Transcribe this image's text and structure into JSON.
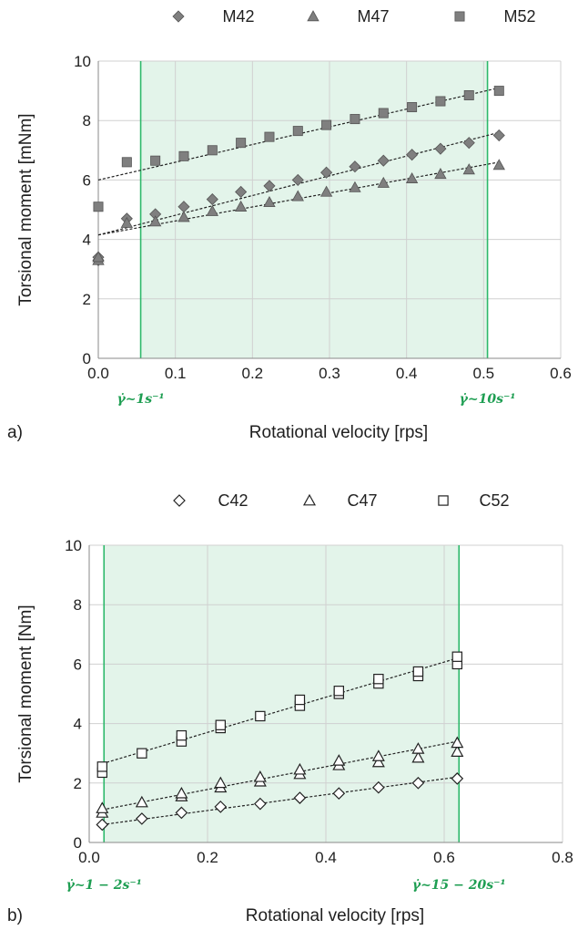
{
  "colors": {
    "region_fill": "#e3f4ea",
    "region_line": "#2db86a",
    "annotation": "#1e9e52",
    "grid": "#d0d0d0",
    "filled_marker": "#7f7f7f",
    "trend": "#222222"
  },
  "chart_data": [
    {
      "type": "scatter",
      "panel_label": "a)",
      "xlabel": "Rotational velocity [rps]",
      "ylabel": "Torsional moment [mNm]",
      "xlim": [
        0,
        0.6
      ],
      "ylim": [
        0,
        10
      ],
      "xticks": [
        "0.0",
        "0.1",
        "0.2",
        "0.3",
        "0.4",
        "0.5",
        "0.6"
      ],
      "yticks": [
        "0",
        "2",
        "4",
        "6",
        "8",
        "10"
      ],
      "grid": true,
      "legend_position": "top",
      "shaded_region": [
        0.055,
        0.505
      ],
      "annotations": [
        {
          "x": 0.055,
          "label": "γ̇~1s⁻¹"
        },
        {
          "x": 0.505,
          "label": "γ̇~10s⁻¹"
        }
      ],
      "series": [
        {
          "name": "M42",
          "marker": "diamond",
          "filled": true,
          "x": [
            0.0,
            0.0,
            0.037,
            0.074,
            0.111,
            0.148,
            0.185,
            0.222,
            0.259,
            0.296,
            0.333,
            0.37,
            0.407,
            0.444,
            0.481,
            0.52
          ],
          "y": [
            3.3,
            3.4,
            4.7,
            4.85,
            5.1,
            5.35,
            5.6,
            5.8,
            6.0,
            6.25,
            6.45,
            6.65,
            6.85,
            7.05,
            7.25,
            7.5
          ],
          "trend": [
            [
              0.0,
              4.15
            ],
            [
              0.52,
              7.6
            ]
          ]
        },
        {
          "name": "M47",
          "marker": "triangle",
          "filled": true,
          "x": [
            0.0,
            0.0,
            0.037,
            0.074,
            0.111,
            0.148,
            0.185,
            0.222,
            0.259,
            0.296,
            0.333,
            0.37,
            0.407,
            0.444,
            0.481,
            0.52
          ],
          "y": [
            3.3,
            3.4,
            4.55,
            4.6,
            4.75,
            4.95,
            5.1,
            5.25,
            5.45,
            5.6,
            5.75,
            5.9,
            6.05,
            6.2,
            6.35,
            6.5
          ],
          "trend": [
            [
              0.0,
              4.15
            ],
            [
              0.52,
              6.6
            ]
          ]
        },
        {
          "name": "M52",
          "marker": "square",
          "filled": true,
          "x": [
            0.0,
            0.037,
            0.074,
            0.111,
            0.148,
            0.185,
            0.222,
            0.259,
            0.296,
            0.333,
            0.37,
            0.407,
            0.444,
            0.481,
            0.52
          ],
          "y": [
            5.1,
            6.6,
            6.65,
            6.8,
            7.0,
            7.25,
            7.45,
            7.65,
            7.85,
            8.05,
            8.25,
            8.45,
            8.65,
            8.85,
            9.0
          ],
          "trend": [
            [
              0.0,
              6.0
            ],
            [
              0.52,
              9.1
            ]
          ]
        }
      ]
    },
    {
      "type": "scatter",
      "panel_label": "b)",
      "xlabel": "Rotational velocity [rps]",
      "ylabel": "Torsional moment [Nm]",
      "xlim": [
        0,
        0.8
      ],
      "ylim": [
        0,
        10
      ],
      "xticks": [
        "0.0",
        "0.2",
        "0.4",
        "0.6",
        "0.8"
      ],
      "yticks": [
        "0",
        "2",
        "4",
        "6",
        "8",
        "10"
      ],
      "grid": true,
      "legend_position": "top",
      "shaded_region": [
        0.025,
        0.625
      ],
      "annotations": [
        {
          "x": 0.025,
          "label": "γ̇~1 − 2s⁻¹"
        },
        {
          "x": 0.625,
          "label": "γ̇~15 − 20s⁻¹"
        }
      ],
      "series": [
        {
          "name": "C42",
          "marker": "diamond",
          "filled": false,
          "x": [
            0.022,
            0.089,
            0.156,
            0.222,
            0.289,
            0.356,
            0.422,
            0.489,
            0.556,
            0.622
          ],
          "y": [
            0.6,
            0.8,
            1.0,
            1.2,
            1.3,
            1.5,
            1.65,
            1.85,
            2.0,
            2.15
          ],
          "trend": [
            [
              0.022,
              0.6
            ],
            [
              0.622,
              2.2
            ]
          ]
        },
        {
          "name": "C47",
          "marker": "triangle",
          "filled": false,
          "x": [
            0.022,
            0.022,
            0.089,
            0.156,
            0.156,
            0.222,
            0.222,
            0.289,
            0.289,
            0.356,
            0.356,
            0.422,
            0.422,
            0.489,
            0.489,
            0.556,
            0.556,
            0.622,
            0.622
          ],
          "y": [
            1.0,
            1.15,
            1.35,
            1.55,
            1.65,
            1.85,
            2.0,
            2.05,
            2.2,
            2.3,
            2.45,
            2.6,
            2.75,
            2.7,
            2.9,
            2.85,
            3.15,
            3.05,
            3.35
          ],
          "trend": [
            [
              0.022,
              1.1
            ],
            [
              0.622,
              3.4
            ]
          ]
        },
        {
          "name": "C52",
          "marker": "square",
          "filled": false,
          "x": [
            0.022,
            0.022,
            0.089,
            0.156,
            0.156,
            0.222,
            0.222,
            0.289,
            0.356,
            0.356,
            0.422,
            0.422,
            0.489,
            0.489,
            0.556,
            0.556,
            0.622,
            0.622
          ],
          "y": [
            2.35,
            2.55,
            3.0,
            3.4,
            3.6,
            3.85,
            3.95,
            4.25,
            4.6,
            4.8,
            5.0,
            5.1,
            5.35,
            5.5,
            5.6,
            5.75,
            6.0,
            6.25
          ],
          "trend": [
            [
              0.022,
              2.65
            ],
            [
              0.622,
              6.2
            ]
          ]
        }
      ]
    }
  ]
}
